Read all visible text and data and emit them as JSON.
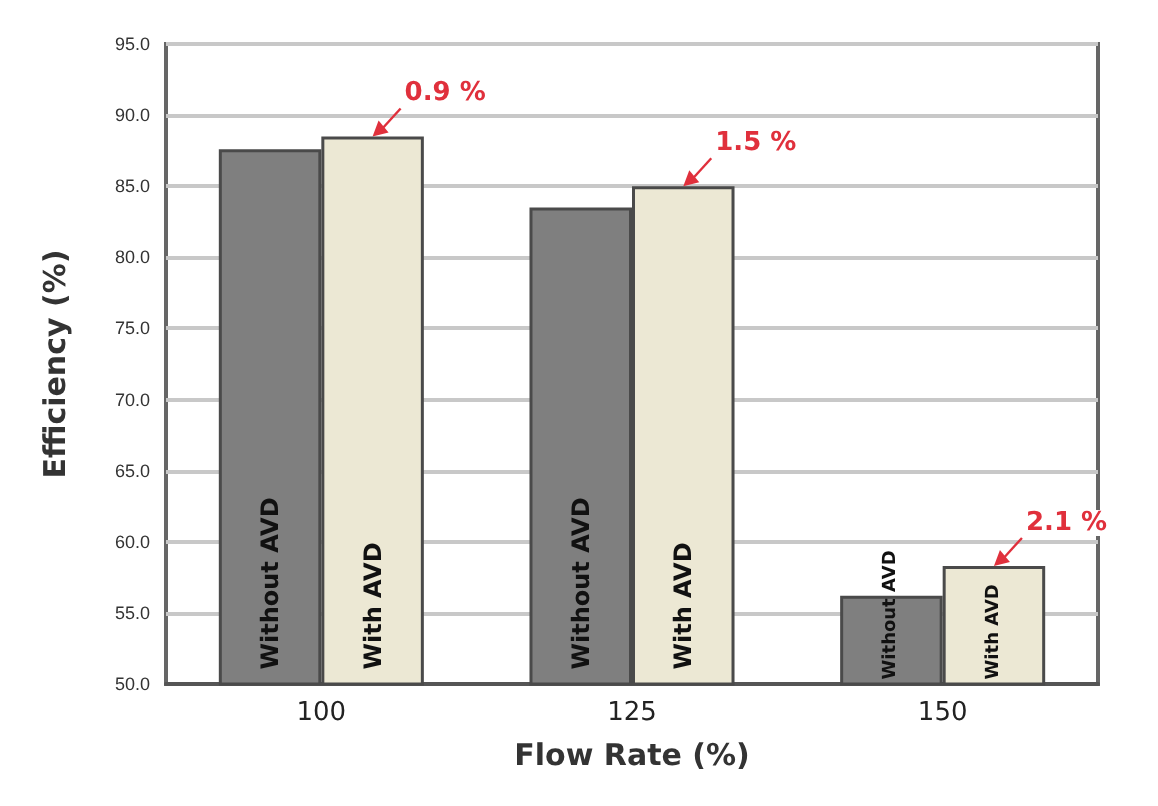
{
  "chart_data": {
    "type": "bar",
    "xlabel": "Flow Rate (%)",
    "ylabel": "Efficiency (%)",
    "categories": [
      "100",
      "125",
      "150"
    ],
    "series": [
      {
        "name": "Without AVD",
        "color": "#7f7f7f",
        "values": [
          87.6,
          83.5,
          56.2
        ]
      },
      {
        "name": "With AVD",
        "color": "#ece8d4",
        "values": [
          88.5,
          85.0,
          58.3
        ]
      }
    ],
    "ylim": [
      50,
      95
    ],
    "yticks": [
      {
        "value": 50,
        "label": "50.0"
      },
      {
        "value": 55,
        "label": "55.0"
      },
      {
        "value": 60,
        "label": "60.0"
      },
      {
        "value": 65,
        "label": "65.0"
      },
      {
        "value": 70,
        "label": "70.0"
      },
      {
        "value": 75,
        "label": "75.0"
      },
      {
        "value": 80,
        "label": "80.0"
      },
      {
        "value": 85,
        "label": "85.0"
      },
      {
        "value": 90,
        "label": "90.0"
      },
      {
        "value": 95,
        "label": "95.0"
      }
    ],
    "grid": "y",
    "legend": false,
    "annotations": [
      "0.9 %",
      "1.5 %",
      "2.1 %"
    ]
  }
}
